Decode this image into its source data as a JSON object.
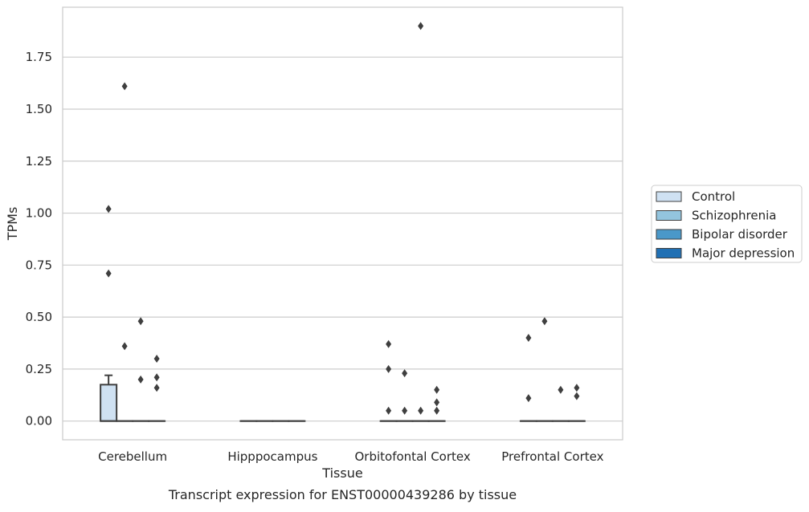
{
  "chart_data": {
    "type": "box",
    "title": "Transcript expression for ENST00000439286 by tissue",
    "xlabel": "Tissue",
    "ylabel": "TPMs",
    "categories": [
      "Cerebellum",
      "Hipppocampus",
      "Orbitofontal Cortex",
      "Prefrontal Cortex"
    ],
    "ylim": [
      -0.09,
      1.99
    ],
    "yticks": [
      "0.00",
      "0.25",
      "0.50",
      "0.75",
      "1.00",
      "1.25",
      "1.50",
      "1.75"
    ],
    "grid": "horizontal",
    "legend_position": "right",
    "series": [
      {
        "name": "Control",
        "color": "#cfe1f2",
        "boxes": [
          {
            "q1": 0.0,
            "median": 0.0,
            "q3": 0.175,
            "whisker_low": 0.0,
            "whisker_high": 0.22,
            "outliers": [
              0.71,
              1.02
            ]
          },
          {
            "q1": 0.0,
            "median": 0.0,
            "q3": 0.0,
            "whisker_low": 0.0,
            "whisker_high": 0.0,
            "outliers": []
          },
          {
            "q1": 0.0,
            "median": 0.0,
            "q3": 0.0,
            "whisker_low": 0.0,
            "whisker_high": 0.0,
            "outliers": [
              0.05,
              0.25,
              0.37
            ]
          },
          {
            "q1": 0.0,
            "median": 0.0,
            "q3": 0.0,
            "whisker_low": 0.0,
            "whisker_high": 0.0,
            "outliers": [
              0.11,
              0.4
            ]
          }
        ]
      },
      {
        "name": "Schizophrenia",
        "color": "#93c4de",
        "boxes": [
          {
            "q1": 0.0,
            "median": 0.0,
            "q3": 0.0,
            "whisker_low": 0.0,
            "whisker_high": 0.0,
            "outliers": [
              0.36,
              1.61
            ]
          },
          {
            "q1": 0.0,
            "median": 0.0,
            "q3": 0.0,
            "whisker_low": 0.0,
            "whisker_high": 0.0,
            "outliers": []
          },
          {
            "q1": 0.0,
            "median": 0.0,
            "q3": 0.0,
            "whisker_low": 0.0,
            "whisker_high": 0.0,
            "outliers": [
              0.05,
              0.23
            ]
          },
          {
            "q1": 0.0,
            "median": 0.0,
            "q3": 0.0,
            "whisker_low": 0.0,
            "whisker_high": 0.0,
            "outliers": [
              0.48
            ]
          }
        ]
      },
      {
        "name": "Bipolar disorder",
        "color": "#4a98c9",
        "boxes": [
          {
            "q1": 0.0,
            "median": 0.0,
            "q3": 0.0,
            "whisker_low": 0.0,
            "whisker_high": 0.0,
            "outliers": [
              0.2,
              0.48
            ]
          },
          {
            "q1": 0.0,
            "median": 0.0,
            "q3": 0.0,
            "whisker_low": 0.0,
            "whisker_high": 0.0,
            "outliers": []
          },
          {
            "q1": 0.0,
            "median": 0.0,
            "q3": 0.0,
            "whisker_low": 0.0,
            "whisker_high": 0.0,
            "outliers": [
              0.05,
              1.9
            ]
          },
          {
            "q1": 0.0,
            "median": 0.0,
            "q3": 0.0,
            "whisker_low": 0.0,
            "whisker_high": 0.0,
            "outliers": [
              0.15
            ]
          }
        ]
      },
      {
        "name": "Major depression",
        "color": "#2070b4",
        "boxes": [
          {
            "q1": 0.0,
            "median": 0.0,
            "q3": 0.0,
            "whisker_low": 0.0,
            "whisker_high": 0.0,
            "outliers": [
              0.16,
              0.21,
              0.3
            ]
          },
          {
            "q1": 0.0,
            "median": 0.0,
            "q3": 0.0,
            "whisker_low": 0.0,
            "whisker_high": 0.0,
            "outliers": []
          },
          {
            "q1": 0.0,
            "median": 0.0,
            "q3": 0.0,
            "whisker_low": 0.0,
            "whisker_high": 0.0,
            "outliers": [
              0.05,
              0.09,
              0.15
            ]
          },
          {
            "q1": 0.0,
            "median": 0.0,
            "q3": 0.0,
            "whisker_low": 0.0,
            "whisker_high": 0.0,
            "outliers": [
              0.12,
              0.16
            ]
          }
        ]
      }
    ]
  }
}
